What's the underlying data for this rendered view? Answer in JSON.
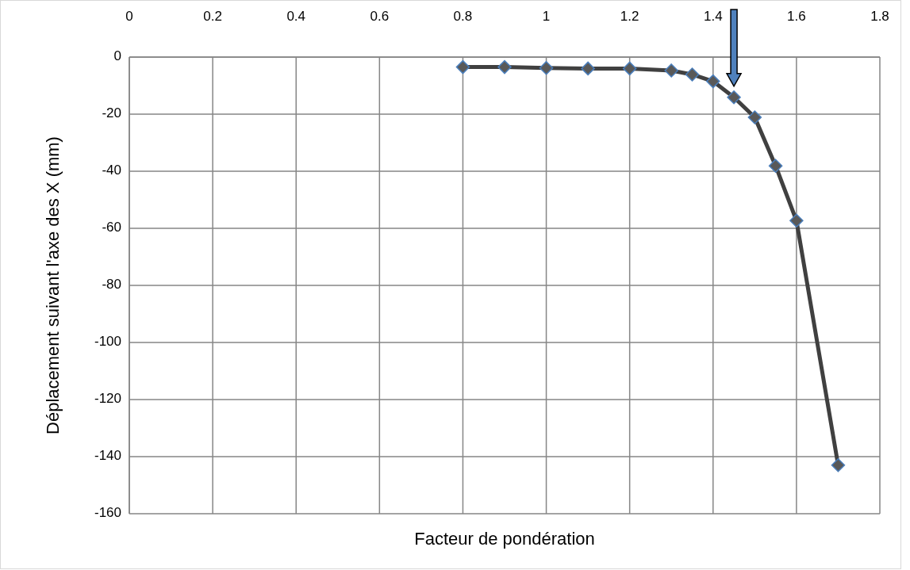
{
  "chart_data": {
    "type": "line",
    "xlabel": "Facteur de pondération",
    "ylabel": "Déplacement suivant l'axe des X (mm)",
    "x": [
      0.8,
      0.9,
      1.0,
      1.1,
      1.2,
      1.3,
      1.35,
      1.4,
      1.45,
      1.5,
      1.55,
      1.6,
      1.7
    ],
    "series": [
      {
        "color": "#404040",
        "values": [
          -3.5,
          -3.5,
          -3.8,
          -4.0,
          -4.0,
          -4.7,
          -6.1,
          -8.5,
          -14.1,
          -21.1,
          -38.1,
          -57.3,
          -143
        ]
      }
    ],
    "xlim": [
      0,
      1.8
    ],
    "xticks": [
      0,
      0.2,
      0.4,
      0.6,
      0.8,
      1,
      1.2,
      1.4,
      1.6,
      1.8
    ],
    "ylim": [
      -160,
      0
    ],
    "yticks": [
      -160,
      -140,
      -120,
      -100,
      -80,
      -60,
      -40,
      -20,
      0
    ],
    "grid": true,
    "marker": "diamond",
    "line_style": "solid"
  }
}
